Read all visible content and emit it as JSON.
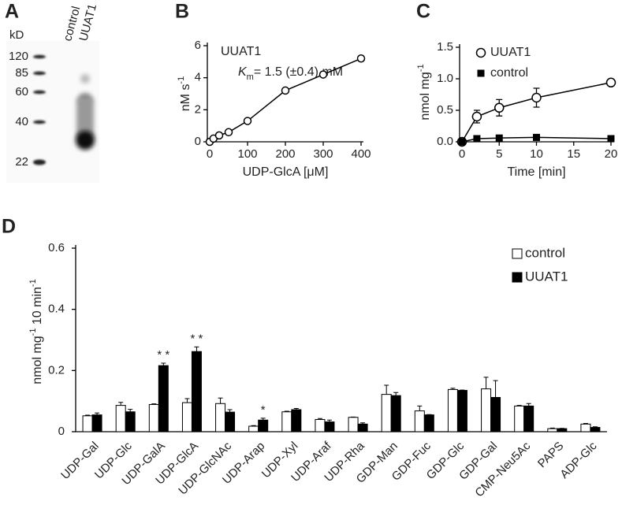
{
  "chart_data": [
    {
      "type": "blot",
      "panel": "A",
      "unit": "kD",
      "ladder": [
        120,
        85,
        60,
        40,
        22
      ],
      "lanes": [
        "control",
        "UUAT1"
      ]
    },
    {
      "type": "scatter",
      "panel": "B",
      "annotation": "UUAT1",
      "km": [
        "K",
        "m",
        "= 1.5 (±0.4) mM"
      ],
      "xlabel": "UDP-GlcA [μM]",
      "ylabel": [
        "nM s",
        "-1"
      ],
      "x": [
        0,
        10,
        25,
        50,
        100,
        200,
        300,
        400
      ],
      "values": [
        0,
        0.2,
        0.4,
        0.6,
        1.3,
        3.2,
        4.2,
        5.2
      ],
      "xlim": [
        0,
        400
      ],
      "xticks": [
        0,
        100,
        200,
        300,
        400
      ],
      "ylim": [
        0,
        6
      ],
      "yticks": [
        0,
        2,
        4,
        6
      ],
      "color": "#000000"
    },
    {
      "type": "line",
      "panel": "C",
      "xlabel": "Time [min]",
      "ylabel": [
        "nmol mg",
        "-1"
      ],
      "x": [
        0,
        2,
        5,
        10,
        20
      ],
      "series": [
        {
          "name": "UUAT1",
          "color": "#000000",
          "marker": "open-circle",
          "values": [
            0,
            0.4,
            0.54,
            0.7,
            0.94
          ],
          "errors": [
            0,
            0.1,
            0.13,
            0.15,
            0.05
          ]
        },
        {
          "name": "control",
          "color": "#000000",
          "marker": "square",
          "values": [
            0,
            0.05,
            0.06,
            0.07,
            0.05
          ],
          "errors": [
            0,
            0.01,
            0.01,
            0.01,
            0.01
          ]
        }
      ],
      "xlim": [
        0,
        20
      ],
      "xticks": [
        0,
        5,
        10,
        15,
        20
      ],
      "ylim": [
        0,
        1.5
      ],
      "yticks": [
        {
          "value": 0,
          "label": "0.0"
        },
        0.5,
        {
          "value": 1,
          "label": "1.0"
        },
        1.5
      ]
    },
    {
      "type": "bar",
      "panel": "D",
      "ylabel": [
        "nmol mg",
        "-1",
        " 10 min",
        "-1"
      ],
      "categories": [
        "UDP-Gal",
        "UDP-Glc",
        "UDP-GalA",
        "UDP-GlcA",
        "UDP-GlcNAc",
        "UDP-Arap",
        "UDP-Xyl",
        "UDP-Araf",
        "UDP-Rha",
        "GDP-Man",
        "GDP-Fuc",
        "GDP-Glc",
        "GDP-Gal",
        "CMP-Neu5Ac",
        "PAPS",
        "ADP-Glc"
      ],
      "series": [
        {
          "name": "control",
          "color": "#ffffff",
          "values": [
            0.052,
            0.086,
            0.089,
            0.095,
            0.092,
            0.018,
            0.065,
            0.04,
            0.047,
            0.122,
            0.068,
            0.138,
            0.14,
            0.084,
            0.01,
            0.025
          ],
          "errors": [
            0.002,
            0.01,
            0.002,
            0.013,
            0.018,
            0.002,
            0.002,
            0.003,
            0.001,
            0.03,
            0.016,
            0.004,
            0.038,
            0.002,
            0.002,
            0.002
          ]
        },
        {
          "name": "UUAT1",
          "color": "#000000",
          "values": [
            0.055,
            0.065,
            0.216,
            0.262,
            0.064,
            0.038,
            0.072,
            0.032,
            0.025,
            0.118,
            0.055,
            0.135,
            0.112,
            0.084,
            0.01,
            0.014
          ],
          "errors": [
            0.006,
            0.008,
            0.008,
            0.015,
            0.008,
            0.006,
            0.004,
            0.006,
            0.004,
            0.01,
            0.001,
            0.001,
            0.055,
            0.008,
            0.001,
            0.002
          ]
        }
      ],
      "significance": [
        null,
        null,
        "* *",
        "* *",
        null,
        "*",
        null,
        null,
        null,
        null,
        null,
        null,
        null,
        null,
        null,
        null
      ],
      "ylim": [
        0,
        0.6
      ],
      "yticks": [
        0,
        0.2,
        0.4,
        0.6
      ]
    }
  ]
}
